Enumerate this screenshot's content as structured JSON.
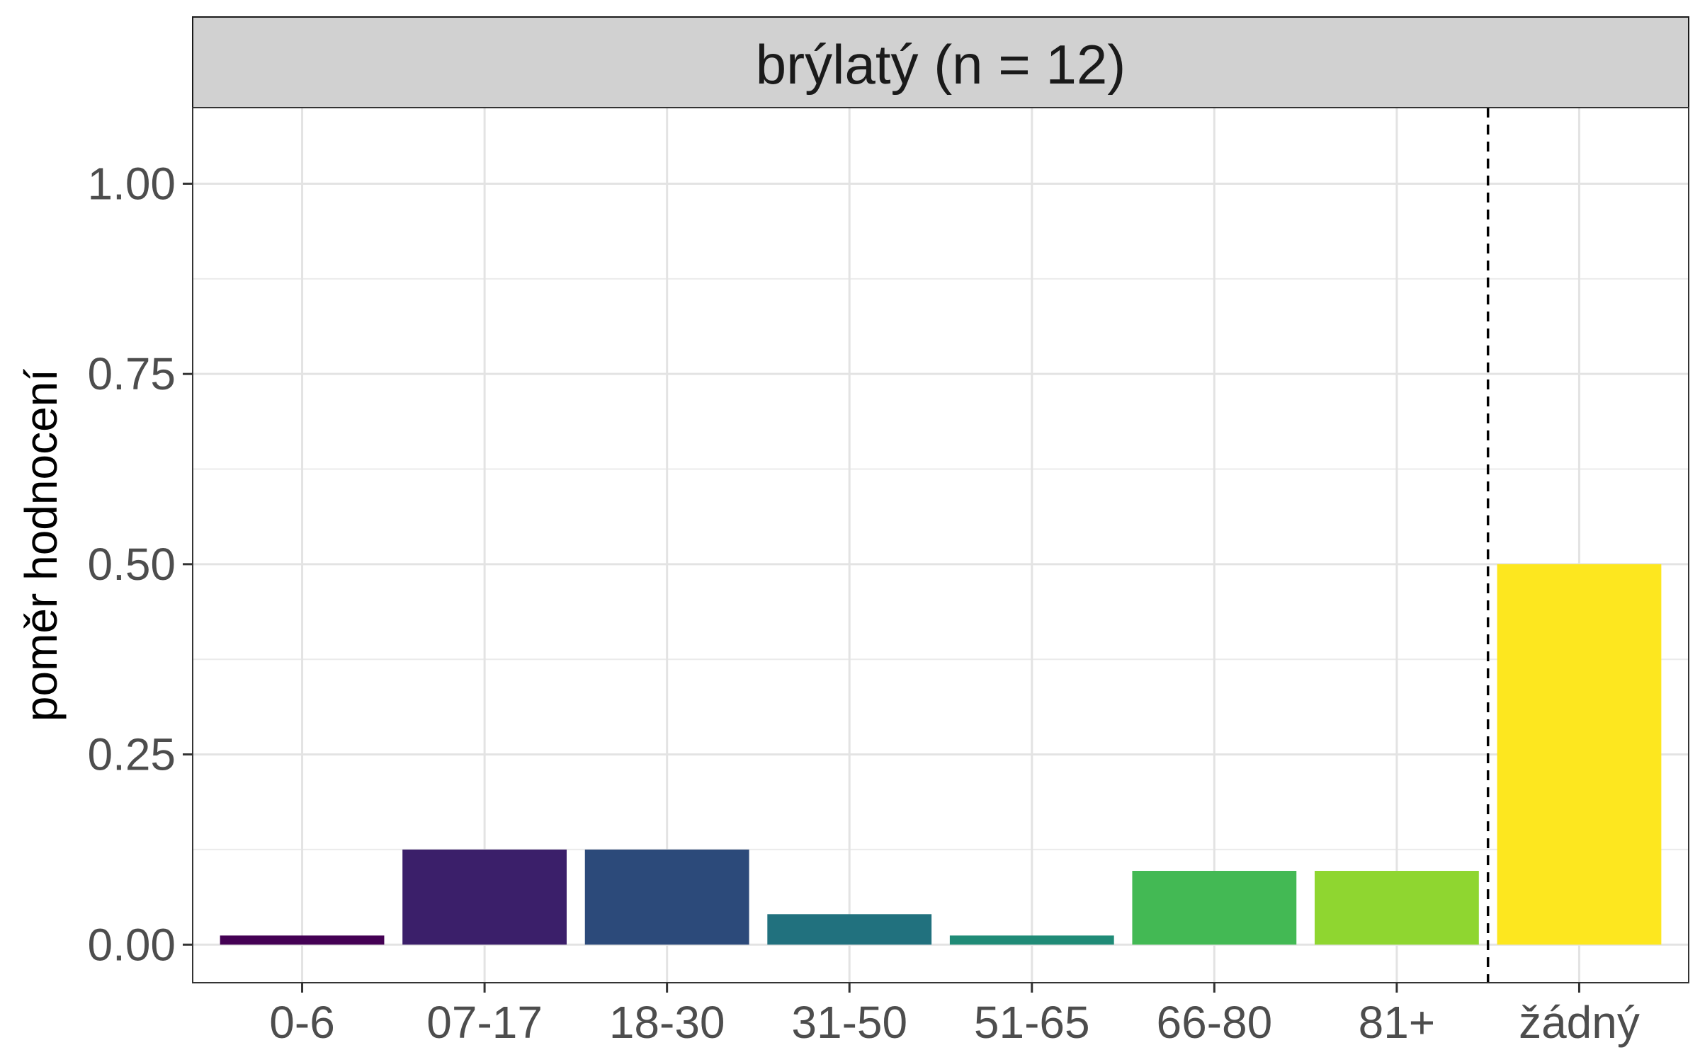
{
  "chart_data": {
    "type": "bar",
    "facet_title": "brýlatý (n = 12)",
    "xlabel": "",
    "ylabel": "poměr hodnocení",
    "categories": [
      "0-6",
      "07-17",
      "18-30",
      "31-50",
      "51-65",
      "66-80",
      "81+",
      "žádný"
    ],
    "values": [
      0.012,
      0.125,
      0.125,
      0.04,
      0.012,
      0.097,
      0.097,
      0.5
    ],
    "colors": [
      "#440154",
      "#3B1F6A",
      "#2C4A7A",
      "#21717E",
      "#208B77",
      "#43B954",
      "#8FD630",
      "#FDE71F"
    ],
    "ylim": [
      -0.05,
      1.1
    ],
    "yticks": [
      0,
      0.25,
      0.5,
      0.75,
      1.0
    ],
    "ytick_labels": [
      "0.00",
      "0.25",
      "0.50",
      "0.75",
      "1.00"
    ],
    "reference_line": {
      "between": [
        "81+",
        "žádný"
      ],
      "style": "dashed"
    },
    "grid": true,
    "theme": "bw"
  }
}
